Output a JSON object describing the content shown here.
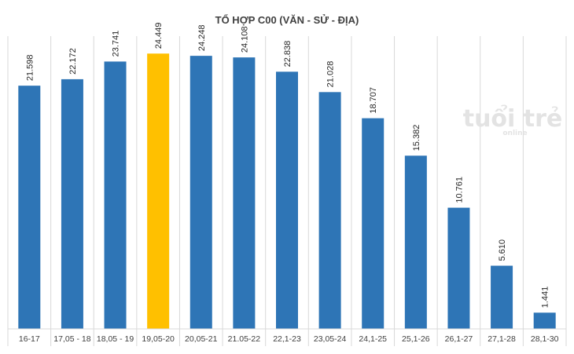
{
  "chart_data": {
    "type": "bar",
    "title": "TỔ HỢP C00 (VĂN - SỬ - ĐỊA)",
    "categories": [
      "16-17",
      "17,05 - 18",
      "18,05 - 19",
      "19,05-20",
      "20,05-21",
      "21.05-22",
      "22,1-23",
      "23,05-24",
      "24,1-25",
      "25,1-26",
      "26,1-27",
      "27,1-28",
      "28,1-30"
    ],
    "values": [
      21598,
      22172,
      23741,
      24449,
      24248,
      24108,
      22838,
      21028,
      18707,
      15382,
      10761,
      5610,
      1441
    ],
    "data_labels": [
      "21.598",
      "22.172",
      "23.741",
      "24.449",
      "24.248",
      "24.108",
      "22.838",
      "21.028",
      "18.707",
      "15.382",
      "10.761",
      "5.610",
      "1.441"
    ],
    "highlight_index": 3,
    "ylim": [
      0,
      26000
    ],
    "grid": "vertical",
    "colors": {
      "bar": "#2e75b6",
      "highlight": "#ffc000",
      "grid": "#d9d9d9"
    }
  },
  "watermark": {
    "text": "tuổi trẻ",
    "subtext": "online"
  }
}
